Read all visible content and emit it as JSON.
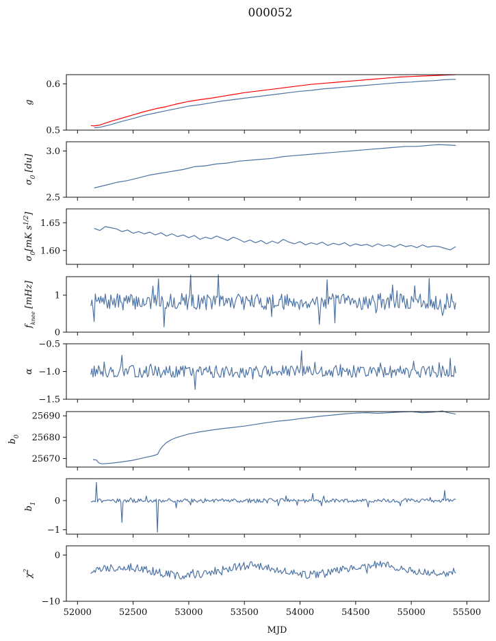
{
  "figure": {
    "title": "000052"
  },
  "chart_data": [
    {
      "type": "line",
      "ylabel": "g",
      "ylabel_html": "g",
      "ylim": [
        0.5,
        0.62
      ],
      "yticks": [
        {
          "v": 0.5,
          "label": "0.5"
        },
        {
          "v": 0.6,
          "label": "0.6"
        }
      ],
      "xlim": [
        51900,
        55700
      ],
      "series": [
        {
          "color": "#ff0000",
          "width": 2.2,
          "x": [
            52120,
            52150,
            52200,
            52300,
            52400,
            52500,
            52600,
            52700,
            52800,
            52900,
            53000,
            53100,
            53200,
            53300,
            53400,
            53500,
            53600,
            53700,
            53800,
            53900,
            54000,
            54100,
            54200,
            54300,
            54400,
            54500,
            54600,
            54700,
            54800,
            54900,
            55000,
            55100,
            55200,
            55300,
            55400
          ],
          "y": [
            0.51,
            0.509,
            0.511,
            0.519,
            0.526,
            0.533,
            0.54,
            0.546,
            0.551,
            0.557,
            0.562,
            0.566,
            0.569,
            0.573,
            0.577,
            0.581,
            0.584,
            0.587,
            0.59,
            0.593,
            0.596,
            0.599,
            0.601,
            0.603,
            0.605,
            0.607,
            0.609,
            0.611,
            0.613,
            0.615,
            0.616,
            0.617,
            0.618,
            0.619,
            0.62
          ]
        },
        {
          "color": "#4c72a4",
          "width": 1.1,
          "x": [
            52150,
            52200,
            52300,
            52400,
            52500,
            52600,
            52700,
            52800,
            52900,
            53000,
            53100,
            53200,
            53300,
            53400,
            53500,
            53600,
            53700,
            53800,
            53900,
            54000,
            54100,
            54200,
            54300,
            54400,
            54500,
            54600,
            54700,
            54800,
            54900,
            55000,
            55100,
            55200,
            55300,
            55400
          ],
          "y": [
            0.505,
            0.506,
            0.512,
            0.519,
            0.525,
            0.532,
            0.537,
            0.542,
            0.547,
            0.552,
            0.555,
            0.559,
            0.563,
            0.566,
            0.569,
            0.572,
            0.575,
            0.578,
            0.581,
            0.584,
            0.586,
            0.589,
            0.591,
            0.593,
            0.595,
            0.597,
            0.599,
            0.601,
            0.603,
            0.604,
            0.606,
            0.607,
            0.609,
            0.61
          ]
        }
      ]
    },
    {
      "type": "line",
      "ylabel": "σ0 [du]",
      "ylabel_html": "σ<tspan baseline-shift=\"sub\" font-size=\"9\">0</tspan> [du]",
      "ylim": [
        2.5,
        3.1
      ],
      "yticks": [
        {
          "v": 2.5,
          "label": "2.5"
        },
        {
          "v": 3.0,
          "label": "3.0"
        }
      ],
      "xlim": [
        51900,
        55700
      ],
      "series": [
        {
          "color": "#4c72a4",
          "width": 1.1,
          "x": [
            52150,
            52250,
            52350,
            52450,
            52550,
            52650,
            52750,
            52850,
            52950,
            53050,
            53150,
            53250,
            53350,
            53450,
            53550,
            53650,
            53750,
            53850,
            53950,
            54050,
            54150,
            54250,
            54350,
            54450,
            54550,
            54650,
            54750,
            54850,
            54950,
            55050,
            55150,
            55250,
            55400
          ],
          "y": [
            2.6,
            2.63,
            2.66,
            2.68,
            2.71,
            2.74,
            2.76,
            2.78,
            2.8,
            2.83,
            2.84,
            2.86,
            2.87,
            2.89,
            2.9,
            2.91,
            2.92,
            2.94,
            2.95,
            2.96,
            2.97,
            2.98,
            2.99,
            3.0,
            3.01,
            3.02,
            3.03,
            3.04,
            3.05,
            3.05,
            3.06,
            3.07,
            3.06
          ]
        }
      ]
    },
    {
      "type": "line",
      "ylabel": "σ0[mK s1/2]",
      "ylabel_html": "σ<tspan baseline-shift=\"sub\" font-size=\"9\">0</tspan><tspan baseline-shift=\"0\">[mK s</tspan><tspan baseline-shift=\"super\" font-size=\"9\">1/2</tspan><tspan baseline-shift=\"0\">]</tspan>",
      "ylim": [
        1.575,
        1.675
      ],
      "yticks": [
        {
          "v": 1.6,
          "label": "1.60"
        },
        {
          "v": 1.65,
          "label": "1.65"
        }
      ],
      "xlim": [
        51900,
        55700
      ],
      "series": [
        {
          "color": "#4c72a4",
          "width": 1.1,
          "x": [
            52150,
            52200,
            52250,
            52300,
            52350,
            52400,
            52450,
            52500,
            52550,
            52600,
            52650,
            52700,
            52750,
            52800,
            52850,
            52900,
            52950,
            53000,
            53050,
            53100,
            53150,
            53200,
            53250,
            53300,
            53350,
            53400,
            53450,
            53500,
            53550,
            53600,
            53650,
            53700,
            53750,
            53800,
            53850,
            53900,
            53950,
            54000,
            54050,
            54100,
            54150,
            54200,
            54250,
            54300,
            54350,
            54400,
            54450,
            54500,
            54550,
            54600,
            54650,
            54700,
            54750,
            54800,
            54850,
            54900,
            54950,
            55000,
            55050,
            55100,
            55150,
            55200,
            55250,
            55300,
            55350,
            55400
          ],
          "y": [
            1.64,
            1.636,
            1.643,
            1.641,
            1.639,
            1.634,
            1.637,
            1.631,
            1.634,
            1.63,
            1.633,
            1.628,
            1.632,
            1.626,
            1.63,
            1.625,
            1.628,
            1.623,
            1.627,
            1.62,
            1.624,
            1.621,
            1.626,
            1.622,
            1.618,
            1.624,
            1.62,
            1.615,
            1.619,
            1.614,
            1.618,
            1.612,
            1.617,
            1.613,
            1.62,
            1.615,
            1.612,
            1.616,
            1.61,
            1.614,
            1.611,
            1.615,
            1.609,
            1.613,
            1.61,
            1.614,
            1.608,
            1.612,
            1.609,
            1.611,
            1.607,
            1.612,
            1.608,
            1.61,
            1.606,
            1.611,
            1.607,
            1.609,
            1.605,
            1.61,
            1.606,
            1.608,
            1.607,
            1.604,
            1.601,
            1.607
          ]
        }
      ]
    },
    {
      "type": "line",
      "ylabel": "fknee [mHz]",
      "ylabel_html": "f<tspan baseline-shift=\"sub\" font-size=\"8\">knee</tspan><tspan baseline-shift=\"0\"> [mHz]</tspan>",
      "ylim": [
        0,
        1.5
      ],
      "yticks": [
        {
          "v": 0,
          "label": "0"
        },
        {
          "v": 1,
          "label": "1"
        }
      ],
      "xlim": [
        51900,
        55700
      ],
      "noise": {
        "x0": 52120,
        "x1": 55400,
        "n": 330,
        "base": 0.82,
        "amp": 0.22,
        "spike": 0.55,
        "seed": 7
      },
      "series": []
    },
    {
      "type": "line",
      "ylabel": "α",
      "ylabel_html": "α",
      "ylim": [
        -1.5,
        -0.5
      ],
      "yticks": [
        {
          "v": -1.5,
          "label": "−1.5"
        },
        {
          "v": -1.0,
          "label": "−1.0"
        },
        {
          "v": -0.5,
          "label": "−0.5"
        }
      ],
      "xlim": [
        51900,
        55700
      ],
      "noise": {
        "x0": 52120,
        "x1": 55400,
        "n": 330,
        "base": -1.0,
        "amp": 0.11,
        "spike": 0.3,
        "seed": 13
      },
      "series": []
    },
    {
      "type": "line",
      "ylabel": "b0",
      "ylabel_html": "b<tspan baseline-shift=\"sub\" font-size=\"9\">0</tspan>",
      "ylim": [
        25666,
        25692
      ],
      "yticks": [
        {
          "v": 25670,
          "label": "25670"
        },
        {
          "v": 25680,
          "label": "25680"
        },
        {
          "v": 25690,
          "label": "25690"
        }
      ],
      "xlim": [
        51900,
        55700
      ],
      "series": [
        {
          "color": "#4c72a4",
          "width": 1.1,
          "x": [
            52140,
            52170,
            52190,
            52220,
            52300,
            52400,
            52500,
            52600,
            52680,
            52720,
            52740,
            52760,
            52800,
            52850,
            52900,
            53000,
            53100,
            53200,
            53300,
            53400,
            53500,
            53600,
            53700,
            53800,
            53900,
            54000,
            54100,
            54200,
            54300,
            54400,
            54500,
            54600,
            54700,
            54800,
            54900,
            55000,
            55100,
            55200,
            55280,
            55320,
            55400
          ],
          "y": [
            25669.5,
            25669.3,
            25668.0,
            25667.5,
            25667.8,
            25668.4,
            25669.2,
            25670.4,
            25671.3,
            25672.0,
            25674.0,
            25675.5,
            25677.5,
            25679.0,
            25680.0,
            25681.5,
            25682.5,
            25683.3,
            25684.0,
            25684.6,
            25685.2,
            25686.0,
            25686.8,
            25687.5,
            25688.0,
            25688.7,
            25689.3,
            25689.9,
            25690.4,
            25690.9,
            25691.3,
            25691.5,
            25691.2,
            25691.5,
            25691.8,
            25692.0,
            25691.5,
            25691.8,
            25692.3,
            25691.6,
            25690.8
          ]
        }
      ]
    },
    {
      "type": "line",
      "ylabel": "b1",
      "ylabel_html": "b<tspan baseline-shift=\"sub\" font-size=\"9\">1</tspan>",
      "ylim": [
        -1.15,
        0.75
      ],
      "yticks": [
        {
          "v": -1,
          "label": "−1"
        },
        {
          "v": 0,
          "label": "0"
        }
      ],
      "xlim": [
        51900,
        55700
      ],
      "noise": {
        "x0": 52120,
        "x1": 55400,
        "n": 330,
        "base": 0.0,
        "amp": 0.07,
        "spike": 0.2,
        "seed": 21,
        "events": [
          {
            "x": 52170,
            "v": 0.62
          },
          {
            "x": 52400,
            "v": -0.75
          },
          {
            "x": 52720,
            "v": -1.08
          },
          {
            "x": 55300,
            "v": 0.35
          }
        ]
      },
      "series": []
    },
    {
      "type": "line",
      "ylabel": "χ2",
      "ylabel_html": "χ<tspan baseline-shift=\"super\" font-size=\"9\">2</tspan>",
      "ylim": [
        -10,
        2
      ],
      "yticks": [
        {
          "v": -10,
          "label": "−10"
        },
        {
          "v": 0,
          "label": "0"
        }
      ],
      "xlim": [
        51900,
        55700
      ],
      "noise": {
        "x0": 52120,
        "x1": 55400,
        "n": 330,
        "base": -3.6,
        "amp": 0.9,
        "spike": 1.2,
        "seed": 33,
        "wave": 1.0
      },
      "series": []
    }
  ],
  "xaxis": {
    "label": "MJD",
    "ticks": [
      52000,
      52500,
      53000,
      53500,
      54000,
      54500,
      55000,
      55500
    ]
  }
}
